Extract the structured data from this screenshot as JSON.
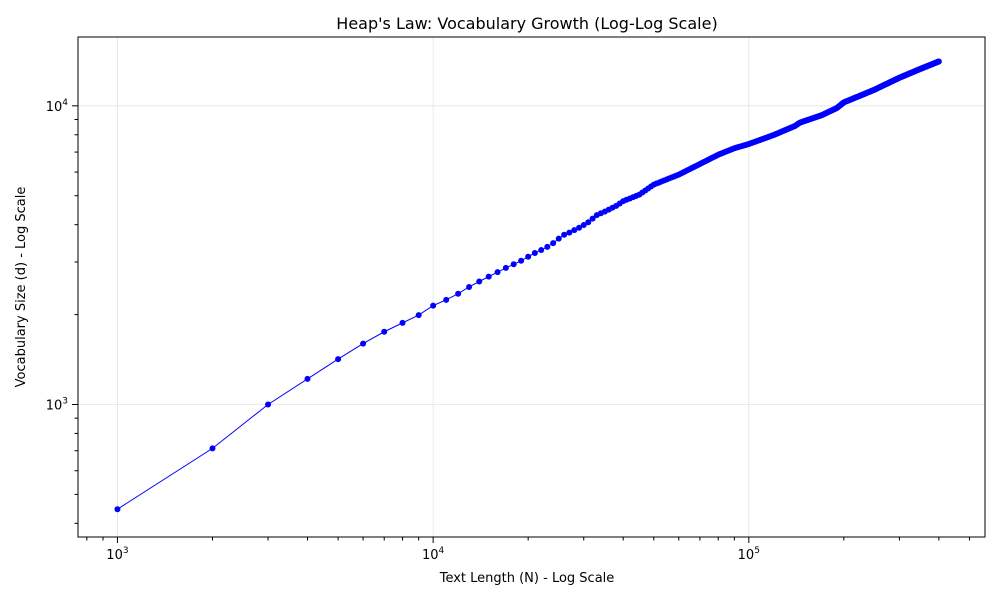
{
  "chart_data": {
    "type": "line",
    "title": "Heap's Law: Vocabulary Growth (Log-Log Scale)",
    "xlabel": "Text Length (N) - Log Scale",
    "ylabel": "Vocabulary Size (d) - Log Scale",
    "xscale": "log",
    "yscale": "log",
    "xlim": [
      750,
      560000
    ],
    "ylim": [
      360,
      17000
    ],
    "grid": true,
    "legend": "none",
    "x_ticks": [
      {
        "base": "10",
        "exp": "3",
        "value": 1000
      },
      {
        "base": "10",
        "exp": "4",
        "value": 10000
      },
      {
        "base": "10",
        "exp": "5",
        "value": 100000
      }
    ],
    "y_ticks": [
      {
        "base": "10",
        "exp": "3",
        "value": 1000
      },
      {
        "base": "10",
        "exp": "4",
        "value": 10000
      }
    ],
    "series": [
      {
        "color": "#0000ff",
        "marker": "circle",
        "anchors": [
          [
            1000,
            446
          ],
          [
            2000,
            713
          ],
          [
            3000,
            1000
          ],
          [
            4000,
            1218
          ],
          [
            5000,
            1419
          ],
          [
            6000,
            1599
          ],
          [
            7000,
            1752
          ],
          [
            8000,
            1876
          ],
          [
            9000,
            1992
          ],
          [
            10000,
            2143
          ],
          [
            11000,
            2241
          ],
          [
            12000,
            2349
          ],
          [
            13000,
            2474
          ],
          [
            14000,
            2581
          ],
          [
            15000,
            2680
          ],
          [
            16000,
            2774
          ],
          [
            17000,
            2866
          ],
          [
            18000,
            2947
          ],
          [
            19000,
            3028
          ],
          [
            20000,
            3124
          ],
          [
            21000,
            3216
          ],
          [
            22000,
            3289
          ],
          [
            23000,
            3371
          ],
          [
            24000,
            3471
          ],
          [
            25000,
            3591
          ],
          [
            26000,
            3700
          ],
          [
            27000,
            3763
          ],
          [
            28000,
            3834
          ],
          [
            29000,
            3905
          ],
          [
            30000,
            3988
          ],
          [
            31000,
            4076
          ],
          [
            32000,
            4192
          ],
          [
            33000,
            4306
          ],
          [
            35000,
            4426
          ],
          [
            38000,
            4625
          ],
          [
            40000,
            4795
          ],
          [
            45000,
            5043
          ],
          [
            50000,
            5447
          ],
          [
            60000,
            5885
          ],
          [
            70000,
            6386
          ],
          [
            80000,
            6859
          ],
          [
            90000,
            7210
          ],
          [
            100000,
            7450
          ],
          [
            120000,
            7987
          ],
          [
            140000,
            8560
          ],
          [
            145000,
            8780
          ],
          [
            170000,
            9300
          ],
          [
            190000,
            9830
          ],
          [
            200000,
            10270
          ],
          [
            250000,
            11320
          ],
          [
            300000,
            12420
          ],
          [
            350000,
            13300
          ],
          [
            400000,
            14080
          ]
        ]
      }
    ]
  }
}
